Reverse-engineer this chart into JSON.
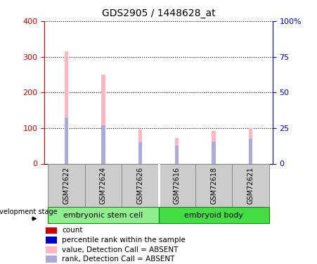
{
  "title": "GDS2905 / 1448628_at",
  "samples": [
    "GSM72622",
    "GSM72624",
    "GSM72626",
    "GSM72616",
    "GSM72618",
    "GSM72621"
  ],
  "groups": [
    {
      "label": "embryonic stem cell",
      "color": "#90EE90"
    },
    {
      "label": "embryoid body",
      "color": "#44DD44"
    }
  ],
  "pink_values": [
    315,
    250,
    96,
    72,
    92,
    100
  ],
  "blue_values": [
    130,
    107,
    60,
    50,
    62,
    70
  ],
  "left_ylim": [
    0,
    400
  ],
  "right_ylim": [
    0,
    100
  ],
  "left_yticks": [
    0,
    100,
    200,
    300,
    400
  ],
  "right_yticks": [
    0,
    25,
    50,
    75,
    100
  ],
  "right_yticklabels": [
    "0",
    "25",
    "50",
    "75",
    "100%"
  ],
  "left_color": "#CC0000",
  "right_color": "#0000CC",
  "pink_bar_color": "#FFB6C1",
  "blue_bar_color": "#AAAADD",
  "bar_width": 0.1,
  "legend_items": [
    {
      "color": "#CC0000",
      "label": "count"
    },
    {
      "color": "#0000CC",
      "label": "percentile rank within the sample"
    },
    {
      "color": "#FFB6C1",
      "label": "value, Detection Call = ABSENT"
    },
    {
      "color": "#AAAADD",
      "label": "rank, Detection Call = ABSENT"
    }
  ],
  "dev_stage_label": "development stage",
  "tick_label_area_color": "#CCCCCC",
  "group_separator_color": "#00AA00"
}
